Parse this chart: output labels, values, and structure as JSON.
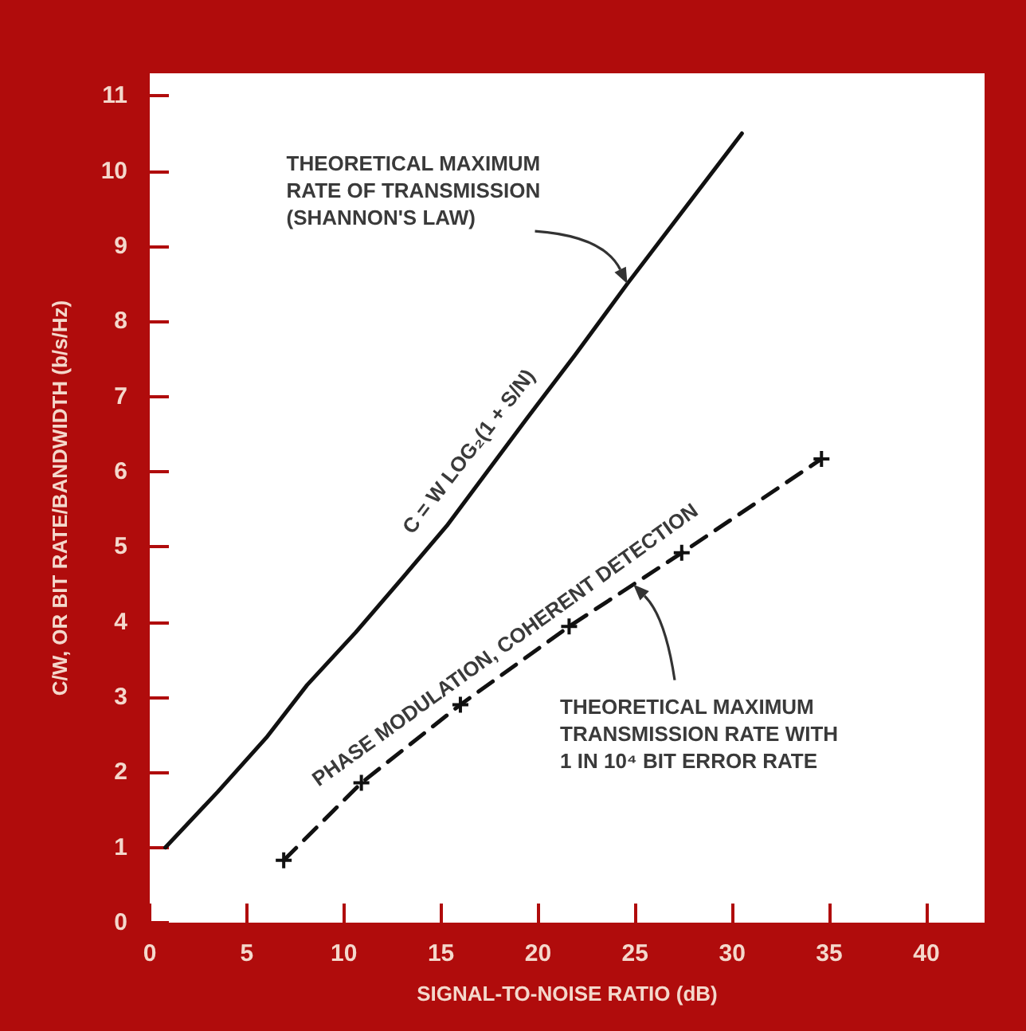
{
  "chart_data": {
    "type": "line",
    "xlabel": "SIGNAL-TO-NOISE RATIO (dB)",
    "ylabel": "C/W, OR BIT RATE/BANDWIDTH (b/s/Hz)",
    "xlim": [
      0,
      43
    ],
    "xticks": [
      0,
      5,
      10,
      15,
      20,
      25,
      30,
      35,
      40
    ],
    "ylim": [
      0,
      11.3
    ],
    "yticks": [
      0,
      1,
      2,
      3,
      4,
      5,
      6,
      7,
      8,
      9,
      10,
      11
    ],
    "series": [
      {
        "color": "#111111",
        "marker": "none",
        "line_style": "solid",
        "x": [
          0.8,
          3.5,
          6.0,
          8.1,
          10.6,
          13.0,
          15.3,
          19.4,
          21.9,
          24.6,
          30.5
        ],
        "values": [
          1.0,
          1.74,
          2.46,
          3.16,
          3.86,
          4.58,
          5.28,
          6.7,
          7.55,
          8.5,
          10.5
        ]
      },
      {
        "color": "#111111",
        "marker": "cross",
        "line_style": "dashed",
        "x": [
          6.9,
          10.9,
          16.0,
          21.6,
          27.4,
          34.6
        ],
        "values": [
          0.83,
          1.86,
          2.9,
          3.94,
          4.92,
          6.17
        ]
      }
    ],
    "annotations": [
      "THEORETICAL MAXIMUM\nRATE OF TRANSMISSION\n(SHANNON'S LAW)",
      "C = W LOG₂(1 + S/N)",
      "PHASE MODULATION, COHERENT DETECTION",
      "THEORETICAL MAXIMUM\nTRANSMISSION RATE WITH\n1 IN 10⁴ BIT ERROR RATE"
    ]
  }
}
